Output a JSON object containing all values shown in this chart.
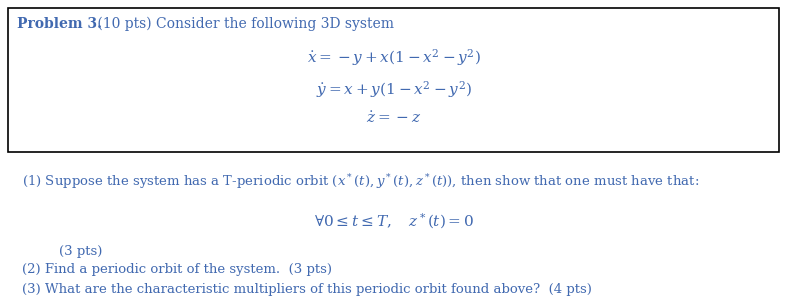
{
  "bg_color": "#ffffff",
  "box_color": "#000000",
  "text_color": "#4169b0",
  "header_bold": "Problem 3.",
  "header_normal": " (10 pts) Consider the following 3D system",
  "eq1": "$\\dot{x} = -y + x(1 - x^2 - y^2)$",
  "eq2": "$\\dot{y} = x + y(1 - x^2 - y^2)$",
  "eq3": "$\\dot{z} = -z$",
  "part1": "(1) Suppose the system has a T-periodic orbit $(x^*(t), y^*(t), z^*(t))$, then show that one must have that:",
  "part1_eq": "$\\forall 0 \\leq t \\leq T, \\quad z^*(t) = 0$",
  "part1_pts": "(3 pts)",
  "part2": "(2) Find a periodic orbit of the system.  (3 pts)",
  "part3": "(3) What are the characteristic multipliers of this periodic orbit found above?  (4 pts)"
}
